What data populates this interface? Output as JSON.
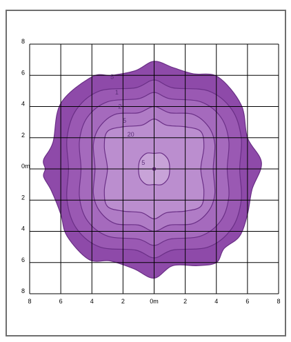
{
  "colors": {
    "frame": "#6e6e6e",
    "grid": "#000000",
    "contour_line": "#6a2f86",
    "source_point": "#4a1d5e",
    "levels": [
      "#8e4aa9",
      "#9a59b3",
      "#a56abd",
      "#b07cc6",
      "#bb8ecf",
      "#c8a3d8"
    ]
  },
  "chart_data": {
    "type": "contour",
    "title": "",
    "xlabel": "",
    "ylabel": "",
    "xlim": [
      -8,
      8
    ],
    "ylim": [
      -8,
      8
    ],
    "grid": true,
    "legend": "none",
    "x_tick_labels": [
      "8",
      "6",
      "4",
      "2",
      "0m",
      "2",
      "4",
      "6",
      "8"
    ],
    "y_tick_labels": [
      "8",
      "6",
      "4",
      "2",
      "0m",
      "2",
      "4",
      "6",
      "8"
    ],
    "source": [
      0,
      0
    ],
    "contour_labels": [
      "5",
      "1",
      "2",
      "5",
      "20",
      "5"
    ],
    "contours": [
      {
        "label": "5",
        "points": [
          [
            -7.0,
            0.0
          ],
          [
            -7.1,
            0.6
          ],
          [
            -6.5,
            1.7
          ],
          [
            -6.0,
            4.2
          ],
          [
            -4.0,
            5.9
          ],
          [
            -2.7,
            6.0
          ],
          [
            -1.2,
            6.3
          ],
          [
            0.0,
            6.9
          ],
          [
            1.2,
            6.5
          ],
          [
            2.5,
            6.1
          ],
          [
            4.1,
            5.9
          ],
          [
            5.6,
            4.1
          ],
          [
            6.0,
            2.0
          ],
          [
            6.9,
            0.4
          ],
          [
            6.3,
            -1.3
          ],
          [
            6.0,
            -2.9
          ],
          [
            5.5,
            -4.3
          ],
          [
            4.5,
            -5.1
          ],
          [
            4.0,
            -6.0
          ],
          [
            2.8,
            -6.2
          ],
          [
            1.2,
            -6.2
          ],
          [
            0.0,
            -7.0
          ],
          [
            -1.3,
            -6.4
          ],
          [
            -2.8,
            -5.9
          ],
          [
            -4.2,
            -5.8
          ],
          [
            -5.6,
            -4.3
          ],
          [
            -6.0,
            -2.9
          ],
          [
            -6.6,
            -1.4
          ],
          [
            -7.1,
            -0.5
          ]
        ]
      },
      {
        "label": "1",
        "points": [
          [
            -5.5,
            0.0
          ],
          [
            -5.6,
            2.0
          ],
          [
            -5.0,
            3.8
          ],
          [
            -3.5,
            5.0
          ],
          [
            -1.2,
            5.2
          ],
          [
            0.0,
            5.7
          ],
          [
            1.2,
            5.2
          ],
          [
            3.5,
            5.0
          ],
          [
            5.0,
            3.8
          ],
          [
            5.6,
            2.0
          ],
          [
            5.5,
            0.0
          ],
          [
            5.6,
            -2.0
          ],
          [
            5.0,
            -3.8
          ],
          [
            3.5,
            -5.0
          ],
          [
            1.2,
            -5.2
          ],
          [
            0.0,
            -5.7
          ],
          [
            -1.2,
            -5.2
          ],
          [
            -3.5,
            -5.0
          ],
          [
            -5.0,
            -3.8
          ],
          [
            -5.6,
            -2.0
          ]
        ]
      },
      {
        "label": "2",
        "points": [
          [
            -4.7,
            0.0
          ],
          [
            -4.8,
            1.8
          ],
          [
            -4.3,
            3.3
          ],
          [
            -3.0,
            4.3
          ],
          [
            -1.0,
            4.5
          ],
          [
            0.0,
            4.9
          ],
          [
            1.0,
            4.5
          ],
          [
            3.0,
            4.3
          ],
          [
            4.3,
            3.3
          ],
          [
            4.8,
            1.8
          ],
          [
            4.7,
            0.0
          ],
          [
            4.8,
            -1.8
          ],
          [
            4.3,
            -3.3
          ],
          [
            3.0,
            -4.3
          ],
          [
            1.0,
            -4.5
          ],
          [
            0.0,
            -4.9
          ],
          [
            -1.0,
            -4.5
          ],
          [
            -3.0,
            -4.3
          ],
          [
            -4.3,
            -3.3
          ],
          [
            -4.8,
            -1.8
          ]
        ]
      },
      {
        "label": "5",
        "points": [
          [
            -3.8,
            0.0
          ],
          [
            -3.9,
            1.6
          ],
          [
            -3.5,
            2.7
          ],
          [
            -2.5,
            3.5
          ],
          [
            -1.0,
            3.6
          ],
          [
            0.0,
            4.0
          ],
          [
            1.0,
            3.6
          ],
          [
            2.5,
            3.5
          ],
          [
            3.5,
            2.7
          ],
          [
            3.9,
            1.6
          ],
          [
            3.8,
            0.0
          ],
          [
            3.9,
            -1.6
          ],
          [
            3.5,
            -2.7
          ],
          [
            2.5,
            -3.5
          ],
          [
            1.0,
            -3.6
          ],
          [
            0.0,
            -4.0
          ],
          [
            -1.0,
            -3.6
          ],
          [
            -2.5,
            -3.5
          ],
          [
            -3.5,
            -2.7
          ],
          [
            -3.9,
            -1.6
          ]
        ]
      },
      {
        "label": "20",
        "points": [
          [
            -3.0,
            0.0
          ],
          [
            -3.2,
            1.4
          ],
          [
            -3.0,
            2.4
          ],
          [
            -2.0,
            2.7
          ],
          [
            -0.8,
            2.8
          ],
          [
            0.0,
            3.2
          ],
          [
            0.8,
            2.8
          ],
          [
            2.0,
            2.7
          ],
          [
            3.0,
            2.4
          ],
          [
            3.2,
            1.4
          ],
          [
            3.0,
            0.0
          ],
          [
            3.2,
            -1.4
          ],
          [
            3.0,
            -2.4
          ],
          [
            2.0,
            -2.7
          ],
          [
            0.8,
            -2.8
          ],
          [
            0.0,
            -3.2
          ],
          [
            -0.8,
            -2.8
          ],
          [
            -2.0,
            -2.7
          ],
          [
            -3.0,
            -2.4
          ],
          [
            -3.2,
            -1.4
          ]
        ]
      },
      {
        "label": "5",
        "points": [
          [
            -1.0,
            0.0
          ],
          [
            -0.9,
            0.6
          ],
          [
            -0.5,
            1.0
          ],
          [
            0.0,
            1.0
          ],
          [
            0.5,
            1.0
          ],
          [
            0.9,
            0.6
          ],
          [
            1.0,
            0.0
          ],
          [
            0.9,
            -0.6
          ],
          [
            0.5,
            -1.0
          ],
          [
            0.0,
            -1.0
          ],
          [
            -0.5,
            -1.0
          ],
          [
            -0.9,
            -0.6
          ]
        ]
      }
    ]
  }
}
